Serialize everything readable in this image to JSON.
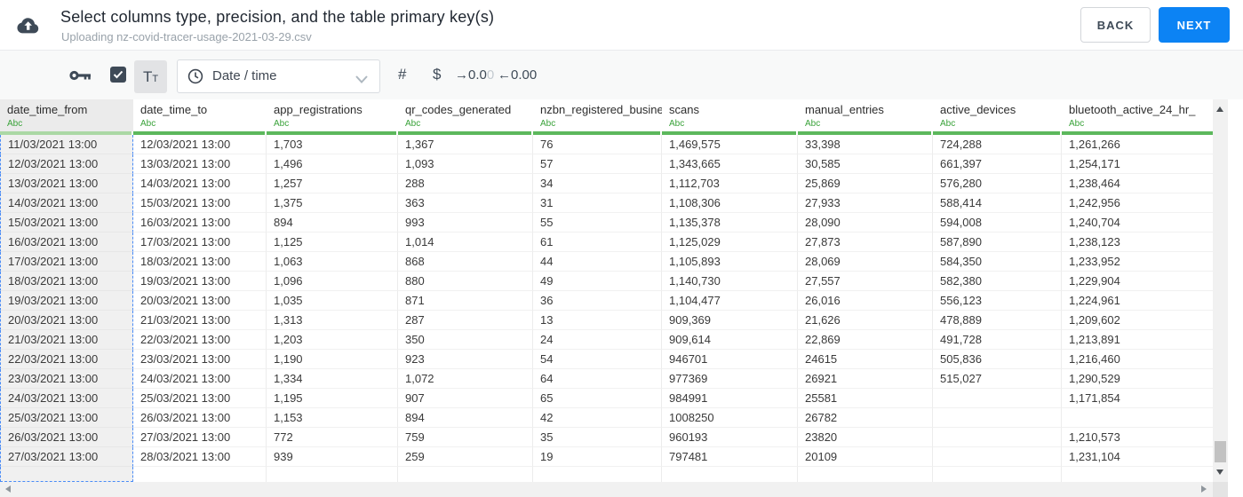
{
  "header": {
    "title": "Select columns type, precision, and the table primary key(s)",
    "subtitle": "Uploading nz-covid-tracer-usage-2021-03-29.csv",
    "back_label": "BACK",
    "next_label": "NEXT"
  },
  "toolbar": {
    "primary_key_checkbox_checked": true,
    "text_type_button": {
      "big": "T",
      "small": "T"
    },
    "type_dropdown": {
      "value": "Date / time",
      "icon": "clock-icon"
    },
    "number_type_glyph": "#",
    "currency_type_glyph": "$",
    "precision_increase": {
      "arrow": "→",
      "main": "0.0",
      "faded": "0"
    },
    "precision_decrease": {
      "arrow": "←",
      "main": "0.00"
    }
  },
  "table": {
    "columns": [
      {
        "name": "date_time_from",
        "type_label": "Abc",
        "selected": true
      },
      {
        "name": "date_time_to",
        "type_label": "Abc",
        "selected": false
      },
      {
        "name": "app_registrations",
        "type_label": "Abc",
        "selected": false
      },
      {
        "name": "qr_codes_generated",
        "type_label": "Abc",
        "selected": false
      },
      {
        "name": "nzbn_registered_busine",
        "type_label": "Abc",
        "selected": false
      },
      {
        "name": "scans",
        "type_label": "Abc",
        "selected": false
      },
      {
        "name": "manual_entries",
        "type_label": "Abc",
        "selected": false
      },
      {
        "name": "active_devices",
        "type_label": "Abc",
        "selected": false
      },
      {
        "name": "bluetooth_active_24_hr_",
        "type_label": "Abc",
        "selected": false
      }
    ],
    "rows": [
      [
        "11/03/2021 13:00",
        "12/03/2021 13:00",
        "1,703",
        "1,367",
        "76",
        "1,469,575",
        "33,398",
        "724,288",
        "1,261,266"
      ],
      [
        "12/03/2021 13:00",
        "13/03/2021 13:00",
        "1,496",
        "1,093",
        "57",
        "1,343,665",
        "30,585",
        "661,397",
        "1,254,171"
      ],
      [
        "13/03/2021 13:00",
        "14/03/2021 13:00",
        "1,257",
        "288",
        "34",
        "1,112,703",
        "25,869",
        "576,280",
        "1,238,464"
      ],
      [
        "14/03/2021 13:00",
        "15/03/2021 13:00",
        "1,375",
        "363",
        "31",
        "1,108,306",
        "27,933",
        "588,414",
        "1,242,956"
      ],
      [
        "15/03/2021 13:00",
        "16/03/2021 13:00",
        "894",
        "993",
        "55",
        "1,135,378",
        "28,090",
        "594,008",
        "1,240,704"
      ],
      [
        "16/03/2021 13:00",
        "17/03/2021 13:00",
        "1,125",
        "1,014",
        "61",
        "1,125,029",
        "27,873",
        "587,890",
        "1,238,123"
      ],
      [
        "17/03/2021 13:00",
        "18/03/2021 13:00",
        "1,063",
        "868",
        "44",
        "1,105,893",
        "28,069",
        "584,350",
        "1,233,952"
      ],
      [
        "18/03/2021 13:00",
        "19/03/2021 13:00",
        "1,096",
        "880",
        "49",
        "1,140,730",
        "27,557",
        "582,380",
        "1,229,904"
      ],
      [
        "19/03/2021 13:00",
        "20/03/2021 13:00",
        "1,035",
        "871",
        "36",
        "1,104,477",
        "26,016",
        "556,123",
        "1,224,961"
      ],
      [
        "20/03/2021 13:00",
        "21/03/2021 13:00",
        "1,313",
        "287",
        "13",
        "909,369",
        "21,626",
        "478,889",
        "1,209,602"
      ],
      [
        "21/03/2021 13:00",
        "22/03/2021 13:00",
        "1,203",
        "350",
        "24",
        "909,614",
        "22,869",
        "491,728",
        "1,213,891"
      ],
      [
        "22/03/2021 13:00",
        "23/03/2021 13:00",
        "1,190",
        "923",
        "54",
        "946701",
        "24615",
        "505,836",
        "1,216,460"
      ],
      [
        "23/03/2021 13:00",
        "24/03/2021 13:00",
        "1,334",
        "1,072",
        "64",
        "977369",
        "26921",
        "515,027",
        "1,290,529"
      ],
      [
        "24/03/2021 13:00",
        "25/03/2021 13:00",
        "1,195",
        "907",
        "65",
        "984991",
        "25581",
        "",
        "1,171,854"
      ],
      [
        "25/03/2021 13:00",
        "26/03/2021 13:00",
        "1,153",
        "894",
        "42",
        "1008250",
        "26782",
        "",
        ""
      ],
      [
        "26/03/2021 13:00",
        "27/03/2021 13:00",
        "772",
        "759",
        "35",
        "960193",
        "23820",
        "",
        "1,210,573"
      ],
      [
        "27/03/2021 13:00",
        "28/03/2021 13:00",
        "939",
        "259",
        "19",
        "797481",
        "20109",
        "",
        "1,231,104"
      ]
    ]
  },
  "colors": {
    "accent_blue": "#0c83f4",
    "type_bar_green": "#5cb85c",
    "selected_type_bar_green": "#abd8a5",
    "type_label_green": "#3aa23a",
    "selection_dash_blue": "#4a8cf7",
    "icon_dark": "#3e4a57"
  }
}
